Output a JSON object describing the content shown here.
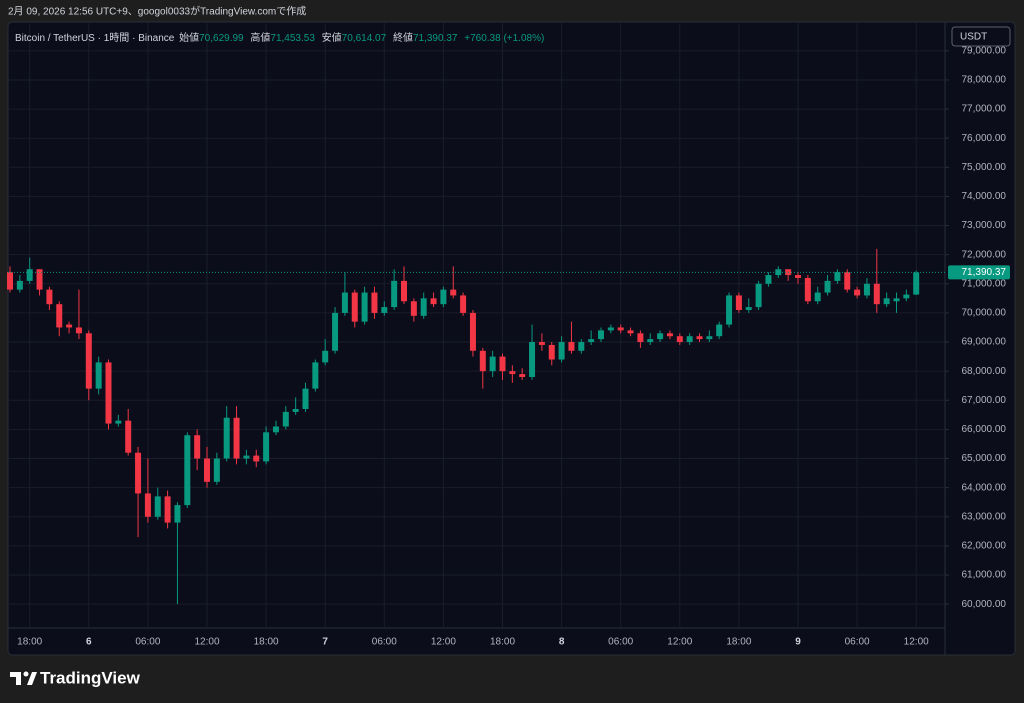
{
  "header": {
    "created": "2月 09, 2026 12:56 UTC+9、googol0033がTradingView.comで作成"
  },
  "legend": {
    "symbol": "Bitcoin / TetherUS · 1時間 · Binance",
    "open_label": "始値",
    "open": "70,629.99",
    "high_label": "高値",
    "high": "71,453.53",
    "low_label": "安値",
    "low": "70,614.07",
    "close_label": "終値",
    "close": "71,390.37",
    "change": "+760.38 (+1.08%)"
  },
  "currency_button": "USDT",
  "logo": "TradingView",
  "chart_data": {
    "type": "candlestick",
    "up_color": "#089981",
    "down_color": "#f23645",
    "grid": true,
    "last_price_label": "71,390.37",
    "categories": [
      null,
      null,
      "18:00",
      null,
      null,
      null,
      null,
      null,
      "6",
      null,
      null,
      null,
      null,
      null,
      "06:00",
      null,
      null,
      null,
      null,
      null,
      "12:00",
      null,
      null,
      null,
      null,
      null,
      "18:00",
      null,
      null,
      null,
      null,
      null,
      "7",
      null,
      null,
      null,
      null,
      null,
      "06:00",
      null,
      null,
      null,
      null,
      null,
      "12:00",
      null,
      null,
      null,
      null,
      null,
      "18:00",
      null,
      null,
      null,
      null,
      null,
      "8",
      null,
      null,
      null,
      null,
      null,
      "06:00",
      null,
      null,
      null,
      null,
      null,
      "12:00",
      null,
      null,
      null,
      null,
      null,
      "18:00",
      null,
      null,
      null,
      null,
      null,
      "9",
      null,
      null,
      null,
      null,
      null,
      "06:00",
      null,
      null,
      null,
      null,
      null,
      "12:00"
    ],
    "series": [
      {
        "name": "open",
        "values": [
          71400,
          70800,
          71100,
          71500,
          70800,
          70300,
          69600,
          69500,
          69300,
          67400,
          68300,
          66200,
          66300,
          65200,
          63800,
          63000,
          63700,
          62800,
          63400,
          65800,
          65000,
          64200,
          65000,
          66400,
          65000,
          65100,
          64900,
          65900,
          66100,
          66600,
          66700,
          67400,
          68300,
          68700,
          70000,
          70700,
          69700,
          70700,
          70000,
          70200,
          71100,
          70400,
          69900,
          70500,
          70300,
          70800,
          70600,
          70000,
          68700,
          68000,
          68500,
          68000,
          67900,
          67800,
          69000,
          68900,
          68400,
          69000,
          68700,
          69000,
          69100,
          69400,
          69500,
          69400,
          69300,
          69000,
          69100,
          69300,
          69200,
          69000,
          69200,
          69100,
          69200,
          69600,
          70600,
          70100,
          70200,
          71000,
          71300,
          71500,
          71300,
          71200,
          70400,
          70700,
          71100,
          71400,
          70800,
          70600,
          71000,
          70300,
          70400,
          70500,
          70629.99
        ]
      },
      {
        "name": "high",
        "values": [
          71600,
          71300,
          71900,
          71500,
          70900,
          70400,
          69700,
          70800,
          69400,
          68500,
          68400,
          66500,
          66700,
          65400,
          65000,
          64000,
          63900,
          63500,
          65900,
          66000,
          65400,
          65200,
          66800,
          66800,
          65300,
          65300,
          66100,
          66300,
          66800,
          67100,
          67600,
          68400,
          69100,
          70200,
          71400,
          70800,
          70900,
          70900,
          70400,
          71500,
          71600,
          70500,
          70700,
          70700,
          70900,
          71600,
          70700,
          70100,
          68800,
          68700,
          68600,
          68200,
          68100,
          69600,
          69300,
          69000,
          69200,
          69700,
          69100,
          69400,
          69500,
          69600,
          69600,
          69500,
          69400,
          69300,
          69400,
          69400,
          69300,
          69300,
          69300,
          69400,
          69700,
          70700,
          70700,
          70500,
          71100,
          71400,
          71600,
          71500,
          71400,
          71300,
          70900,
          71300,
          71500,
          71500,
          70900,
          71200,
          72200,
          70700,
          70700,
          70800,
          71453.53
        ]
      },
      {
        "name": "low",
        "values": [
          70700,
          70700,
          71000,
          70600,
          70100,
          69200,
          69300,
          69100,
          67000,
          67200,
          66000,
          66100,
          65100,
          62300,
          62800,
          62900,
          62600,
          60000,
          63300,
          64600,
          64000,
          64100,
          64900,
          64800,
          64800,
          64700,
          64800,
          65800,
          66000,
          66500,
          66600,
          67300,
          68200,
          68600,
          69900,
          69500,
          69600,
          69800,
          69900,
          70100,
          70300,
          69700,
          69800,
          70200,
          70200,
          70500,
          69900,
          68500,
          67400,
          67800,
          67700,
          67600,
          67700,
          67700,
          68700,
          68200,
          68300,
          68600,
          68600,
          68900,
          69000,
          69300,
          69300,
          69200,
          68800,
          68900,
          69000,
          69100,
          68900,
          68900,
          69000,
          69000,
          69100,
          69500,
          70000,
          70000,
          70100,
          70900,
          71200,
          71100,
          71000,
          70300,
          70300,
          70600,
          71000,
          70700,
          70500,
          70500,
          70000,
          70200,
          70000,
          70400,
          70614.07
        ]
      },
      {
        "name": "close",
        "values": [
          70800,
          71100,
          71500,
          70800,
          70300,
          69500,
          69500,
          69300,
          67400,
          68300,
          66200,
          66300,
          65200,
          63800,
          63000,
          63700,
          62800,
          63400,
          65800,
          65000,
          64200,
          65000,
          66400,
          65000,
          65100,
          64900,
          65900,
          66100,
          66600,
          66700,
          67400,
          68300,
          68700,
          70000,
          70700,
          69700,
          70700,
          70000,
          70200,
          71100,
          70400,
          69900,
          70500,
          70300,
          70800,
          70600,
          70000,
          68700,
          68000,
          68500,
          68000,
          67900,
          67800,
          69000,
          68900,
          68400,
          69000,
          68700,
          69000,
          69100,
          69400,
          69500,
          69400,
          69300,
          69000,
          69100,
          69300,
          69200,
          69000,
          69200,
          69100,
          69200,
          69600,
          70600,
          70100,
          70200,
          71000,
          71300,
          71500,
          71300,
          71200,
          70400,
          70700,
          71100,
          71400,
          70800,
          70600,
          71000,
          70300,
          70500,
          70500,
          70629.99,
          71390.37
        ]
      }
    ],
    "ylim": [
      59180,
      79990
    ],
    "yticks": [
      {
        "value": 60000,
        "label": "60,000.00"
      },
      {
        "value": 61000,
        "label": "61,000.00"
      },
      {
        "value": 62000,
        "label": "62,000.00"
      },
      {
        "value": 63000,
        "label": "63,000.00"
      },
      {
        "value": 64000,
        "label": "64,000.00"
      },
      {
        "value": 65000,
        "label": "65,000.00"
      },
      {
        "value": 66000,
        "label": "66,000.00"
      },
      {
        "value": 67000,
        "label": "67,000.00"
      },
      {
        "value": 68000,
        "label": "68,000.00"
      },
      {
        "value": 69000,
        "label": "69,000.00"
      },
      {
        "value": 70000,
        "label": "70,000.00"
      },
      {
        "value": 71000,
        "label": "71,000.00"
      },
      {
        "value": 72000,
        "label": "72,000.00"
      },
      {
        "value": 73000,
        "label": "73,000.00"
      },
      {
        "value": 74000,
        "label": "74,000.00"
      },
      {
        "value": 75000,
        "label": "75,000.00"
      },
      {
        "value": 76000,
        "label": "76,000.00"
      },
      {
        "value": 77000,
        "label": "77,000.00"
      },
      {
        "value": 78000,
        "label": "78,000.00"
      },
      {
        "value": 79000,
        "label": "79,000.00"
      }
    ]
  }
}
